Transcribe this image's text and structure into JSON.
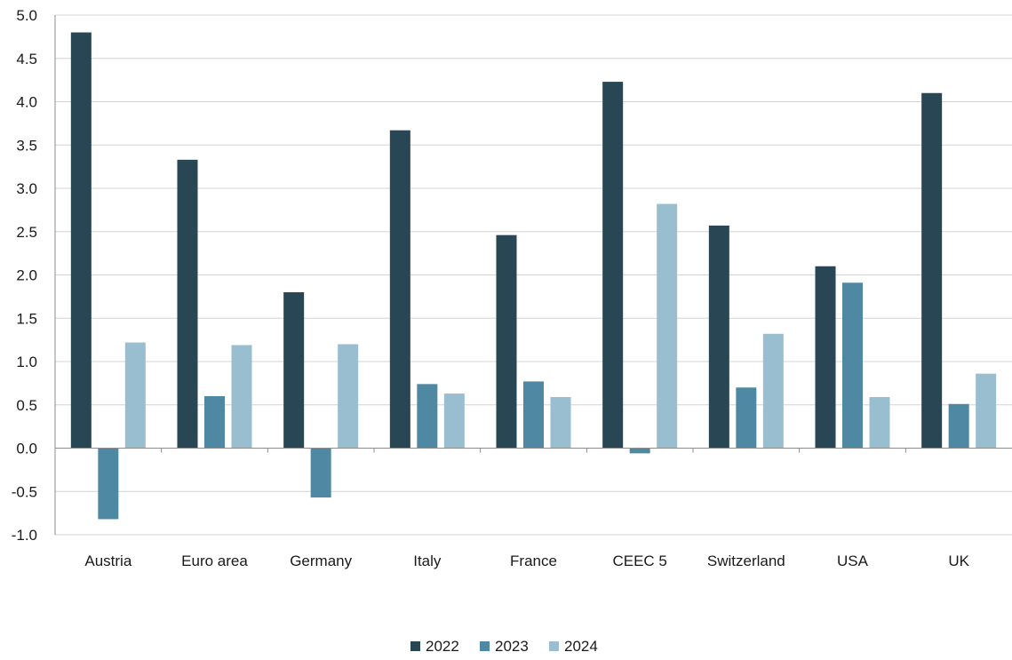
{
  "chart_data": {
    "type": "bar",
    "categories": [
      "Austria",
      "Euro area",
      "Germany",
      "Italy",
      "France",
      "CEEC 5",
      "Switzerland",
      "USA",
      "UK"
    ],
    "series": [
      {
        "name": "2022",
        "color": "#284653",
        "values": [
          4.8,
          3.33,
          1.8,
          3.67,
          2.46,
          4.23,
          2.57,
          2.1,
          4.1
        ]
      },
      {
        "name": "2023",
        "color": "#4f88a3",
        "values": [
          -0.82,
          0.6,
          -0.57,
          0.74,
          0.77,
          -0.06,
          0.7,
          1.91,
          0.51
        ]
      },
      {
        "name": "2024",
        "color": "#99bed0",
        "values": [
          1.22,
          1.19,
          1.2,
          0.63,
          0.59,
          2.82,
          1.32,
          0.59,
          0.86
        ]
      }
    ],
    "ylim": [
      -1.0,
      5.0
    ],
    "yticks": [
      "5.0",
      "4.5",
      "4.0",
      "3.5",
      "3.0",
      "2.5",
      "2.0",
      "1.5",
      "1.0",
      "0.5",
      "0.0",
      "-0.5",
      "-1.0"
    ],
    "ytick_values": [
      5.0,
      4.5,
      4.0,
      3.5,
      3.0,
      2.5,
      2.0,
      1.5,
      1.0,
      0.5,
      0.0,
      -0.5,
      -1.0
    ],
    "grid": true,
    "legend_position": "bottom-center",
    "xlabel": "",
    "ylabel": ""
  }
}
